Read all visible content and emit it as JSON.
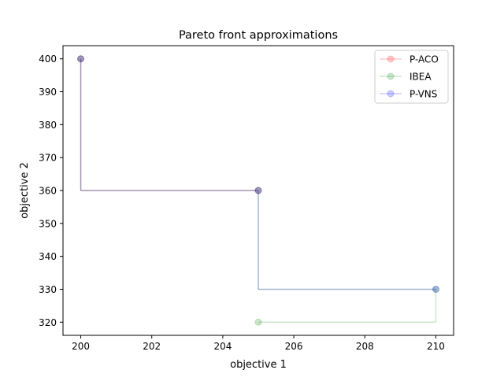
{
  "chart_data": {
    "type": "line",
    "title": "Pareto front approximations",
    "xlabel": "objective 1",
    "ylabel": "objective 2",
    "xlim": [
      199.5,
      210.5
    ],
    "ylim": [
      316.0,
      404.0
    ],
    "xticks": [
      200,
      202,
      204,
      206,
      208,
      210
    ],
    "yticks": [
      320,
      330,
      340,
      350,
      360,
      370,
      380,
      390,
      400
    ],
    "grid": false,
    "legend_position": "top-right",
    "step_style": "pareto-staircase",
    "series": [
      {
        "name": "P-ACO",
        "color": "#ff0000",
        "alpha": 0.2,
        "points": [
          [
            200,
            400
          ],
          [
            205,
            360
          ]
        ]
      },
      {
        "name": "IBEA",
        "color": "#008000",
        "alpha": 0.2,
        "points": [
          [
            200,
            400
          ],
          [
            205,
            360
          ],
          [
            210,
            330
          ],
          [
            205,
            320
          ]
        ]
      },
      {
        "name": "P-VNS",
        "color": "#0000ff",
        "alpha": 0.2,
        "points": [
          [
            200,
            400
          ],
          [
            205,
            360
          ],
          [
            210,
            330
          ]
        ]
      }
    ]
  }
}
